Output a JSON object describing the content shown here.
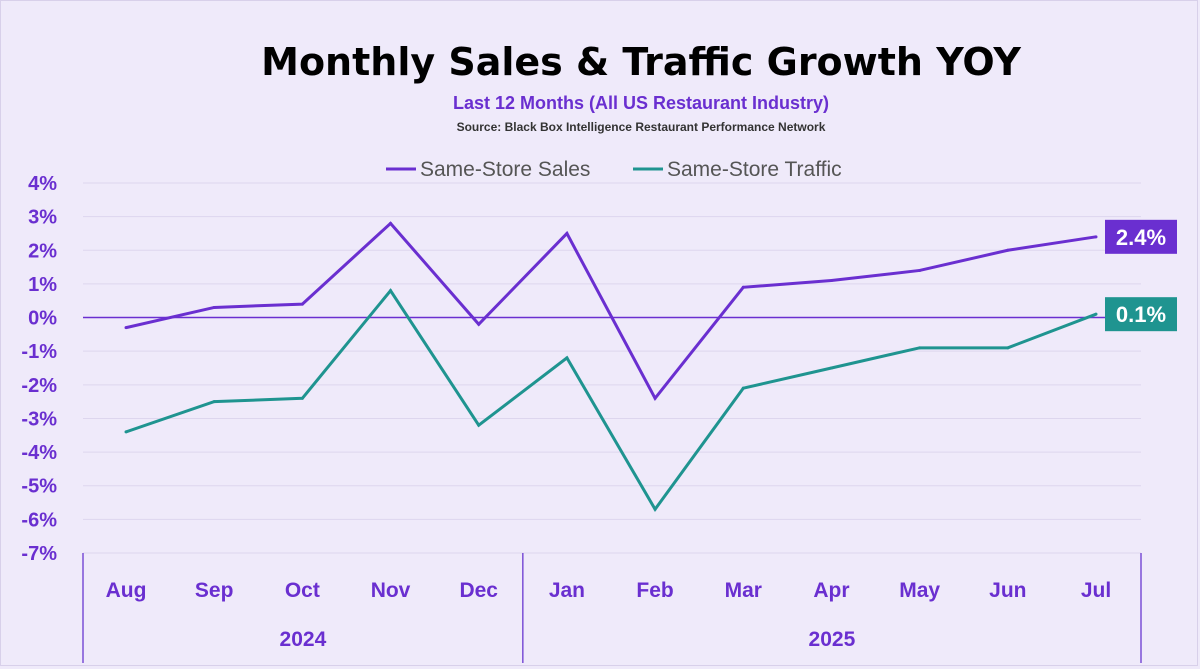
{
  "chart_data": {
    "type": "line",
    "title": "Monthly Sales & Traffic Growth YOY",
    "subtitle": "Last 12 Months (All US Restaurant Industry)",
    "source": "Source: Black Box Intelligence Restaurant Performance Network",
    "categories": [
      "Aug",
      "Sep",
      "Oct",
      "Nov",
      "Dec",
      "Jan",
      "Feb",
      "Mar",
      "Apr",
      "May",
      "Jun",
      "Jul"
    ],
    "year_groups": [
      {
        "label": "2024",
        "start": 0,
        "end": 4
      },
      {
        "label": "2025",
        "start": 5,
        "end": 11
      }
    ],
    "ylim": [
      -7,
      4
    ],
    "yticks": [
      4,
      3,
      2,
      1,
      0,
      -1,
      -2,
      -3,
      -4,
      -5,
      -6,
      -7
    ],
    "ytick_labels": [
      "4%",
      "3%",
      "2%",
      "1%",
      "0%",
      "-1%",
      "-2%",
      "-3%",
      "-4%",
      "-5%",
      "-6%",
      "-7%"
    ],
    "legend_position": "top-center",
    "grid": true,
    "series": [
      {
        "name": "Same-Store Sales",
        "color": "#6a2fd0",
        "values": [
          -0.3,
          0.3,
          0.4,
          2.8,
          -0.2,
          2.5,
          -2.4,
          0.9,
          1.1,
          1.4,
          2.0,
          2.4
        ],
        "end_label": "2.4%"
      },
      {
        "name": "Same-Store Traffic",
        "color": "#1f9490",
        "values": [
          -3.4,
          -2.5,
          -2.4,
          0.8,
          -3.2,
          -1.2,
          -5.7,
          -2.1,
          -1.5,
          -0.9,
          -0.9,
          0.1
        ],
        "end_label": "0.1%"
      }
    ]
  }
}
